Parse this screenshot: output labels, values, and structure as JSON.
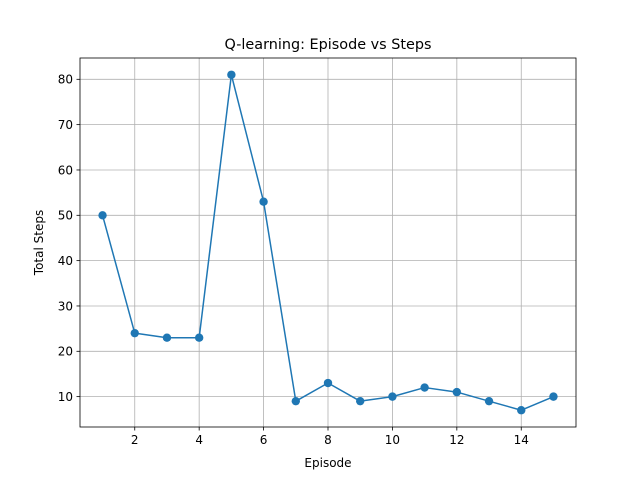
{
  "chart_data": {
    "type": "line",
    "title": "Q-learning: Episode vs Steps",
    "xlabel": "Episode",
    "ylabel": "Total Steps",
    "x": [
      1,
      2,
      3,
      4,
      5,
      6,
      7,
      8,
      9,
      10,
      11,
      12,
      13,
      14,
      15
    ],
    "series": [
      {
        "values": [
          50,
          24,
          23,
          23,
          81,
          53,
          9,
          13,
          9,
          10,
          12,
          11,
          9,
          7,
          10
        ],
        "color": "#1f77b4",
        "marker": "circle"
      }
    ],
    "xlim": [
      0.3,
      15.7
    ],
    "ylim": [
      3.3,
      84.7
    ],
    "xticks": [
      2,
      4,
      6,
      8,
      10,
      12,
      14
    ],
    "yticks": [
      10,
      20,
      30,
      40,
      50,
      60,
      70,
      80
    ],
    "grid": true,
    "legend": "none"
  }
}
